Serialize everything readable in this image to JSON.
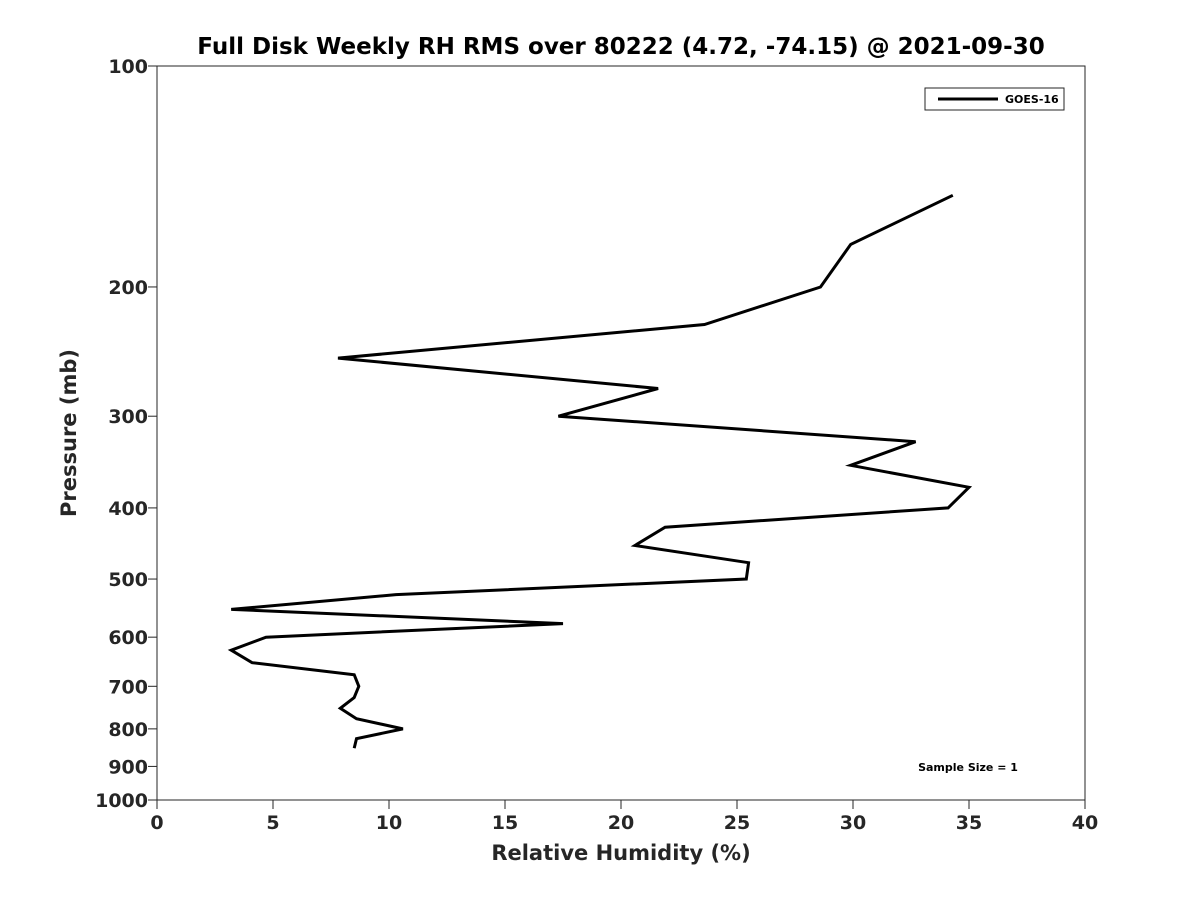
{
  "chart_data": {
    "type": "line",
    "title": "Full Disk Weekly RH RMS over 80222 (4.72, -74.15) @ 2021-09-30",
    "xlabel": "Relative Humidity (%)",
    "ylabel": "Pressure (mb)",
    "xlim": [
      0,
      40
    ],
    "ylim": [
      100,
      1000
    ],
    "yscale": "log",
    "y_reversed": true,
    "xticks": [
      0,
      5,
      10,
      15,
      20,
      25,
      30,
      35,
      40
    ],
    "yticks": [
      100,
      200,
      300,
      400,
      500,
      600,
      700,
      800,
      900,
      1000
    ],
    "legend_position": "top-right",
    "grid": false,
    "series": [
      {
        "name": "GOES-16",
        "color": "#000000",
        "points": [
          {
            "x": 34.3,
            "p": 150
          },
          {
            "x": 29.9,
            "p": 175
          },
          {
            "x": 28.6,
            "p": 200
          },
          {
            "x": 23.6,
            "p": 225
          },
          {
            "x": 7.8,
            "p": 250
          },
          {
            "x": 21.6,
            "p": 275
          },
          {
            "x": 17.3,
            "p": 300
          },
          {
            "x": 32.7,
            "p": 325
          },
          {
            "x": 29.9,
            "p": 350
          },
          {
            "x": 35.0,
            "p": 375
          },
          {
            "x": 34.1,
            "p": 400
          },
          {
            "x": 21.9,
            "p": 425
          },
          {
            "x": 20.6,
            "p": 450
          },
          {
            "x": 25.5,
            "p": 475
          },
          {
            "x": 25.4,
            "p": 500
          },
          {
            "x": 10.3,
            "p": 525
          },
          {
            "x": 3.2,
            "p": 550
          },
          {
            "x": 17.5,
            "p": 575
          },
          {
            "x": 4.7,
            "p": 600
          },
          {
            "x": 3.2,
            "p": 625
          },
          {
            "x": 4.1,
            "p": 650
          },
          {
            "x": 8.5,
            "p": 675
          },
          {
            "x": 8.7,
            "p": 700
          },
          {
            "x": 8.5,
            "p": 725
          },
          {
            "x": 7.9,
            "p": 750
          },
          {
            "x": 8.6,
            "p": 775
          },
          {
            "x": 10.6,
            "p": 800
          },
          {
            "x": 8.6,
            "p": 825
          },
          {
            "x": 8.5,
            "p": 850
          }
        ]
      }
    ],
    "annotation": "Sample Size = 1"
  }
}
